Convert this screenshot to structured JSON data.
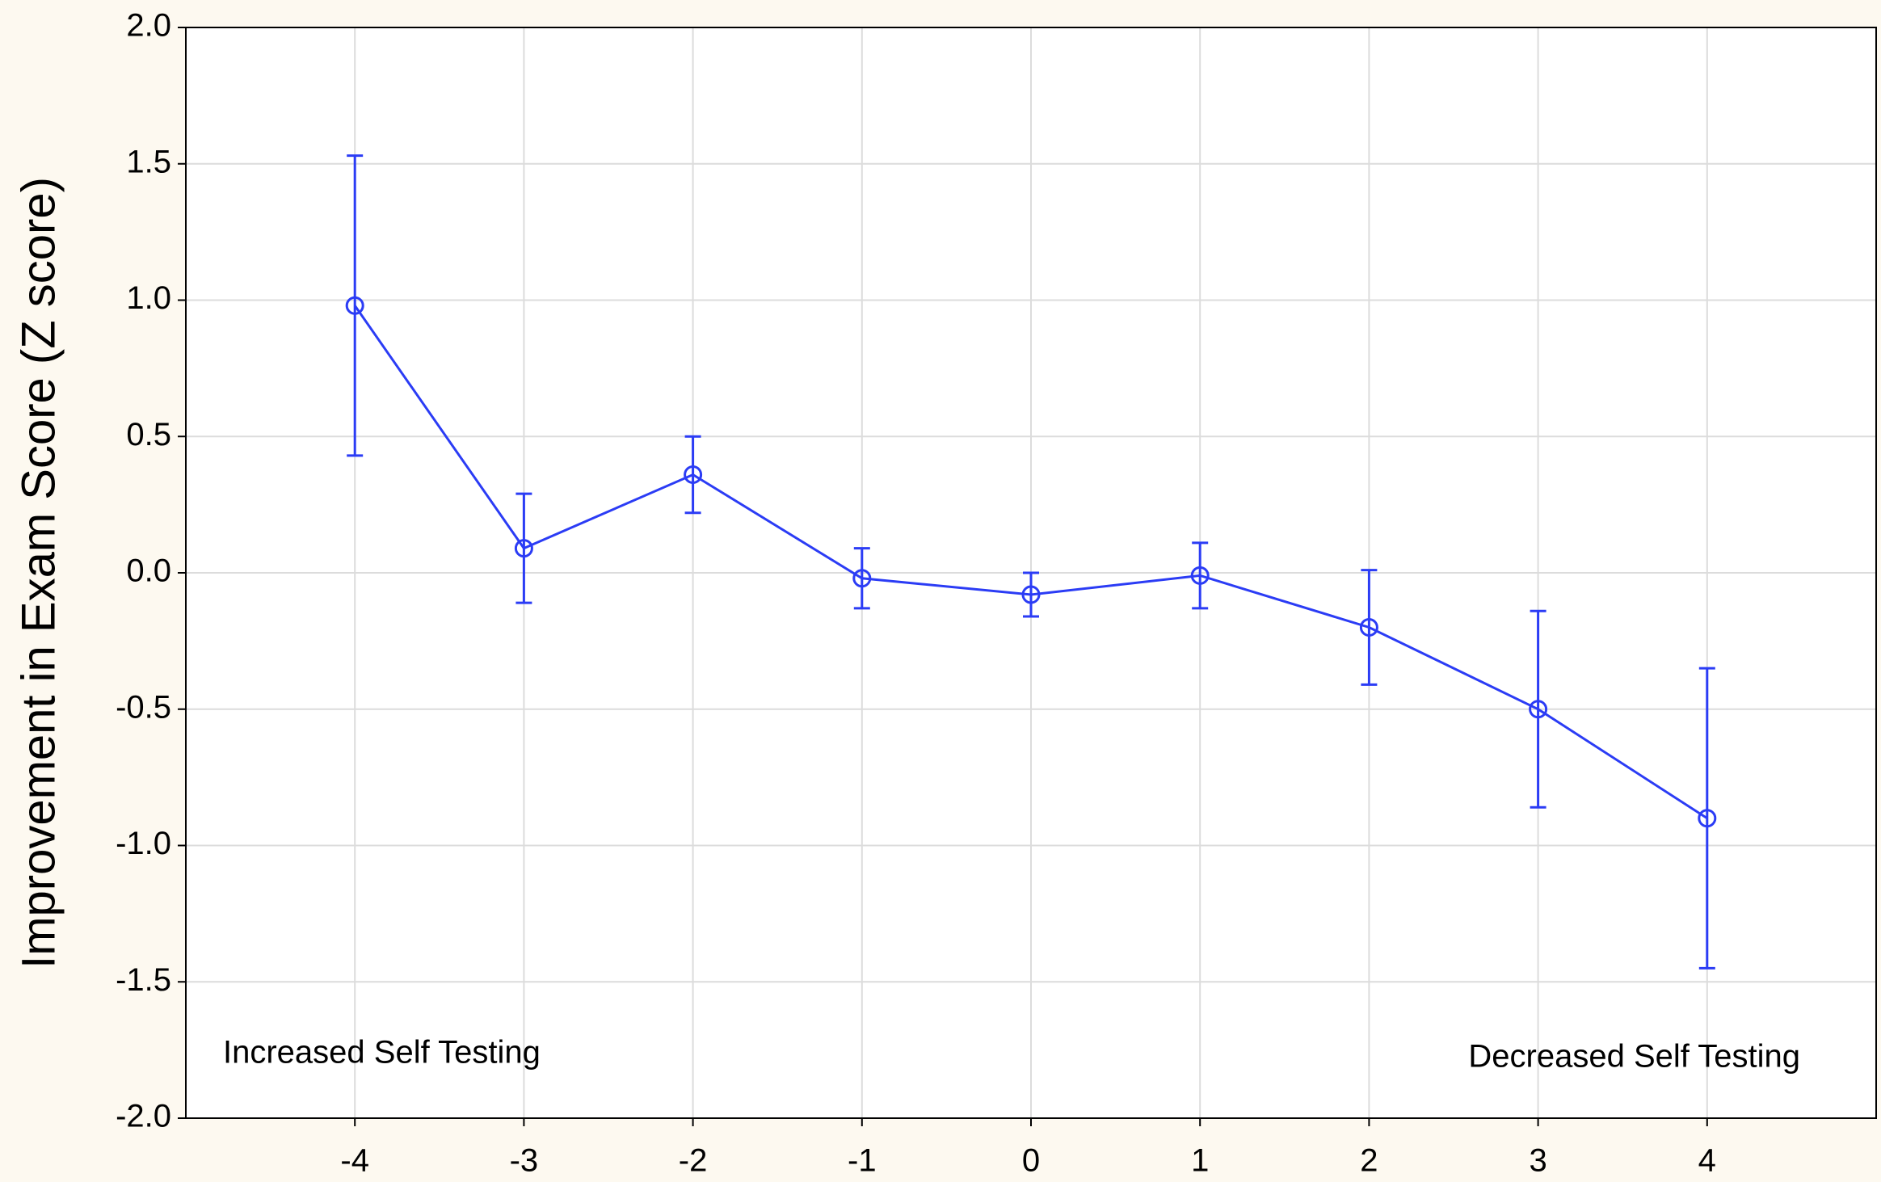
{
  "chart_data": {
    "type": "line",
    "y_label": "Improvement in Exam Score (Z score)",
    "annotations": [
      "Increased Self Testing",
      "Decreased Self Testing"
    ],
    "x": [
      -4,
      -3,
      -2,
      -1,
      0,
      1,
      2,
      3,
      4
    ],
    "values": [
      0.98,
      0.09,
      0.36,
      -0.02,
      -0.08,
      -0.01,
      -0.2,
      -0.5,
      -0.9
    ],
    "errors": [
      0.55,
      0.2,
      0.14,
      0.11,
      0.08,
      0.12,
      0.21,
      0.36,
      0.55
    ],
    "color": "#2b3cf5",
    "xlim": [
      -5,
      5
    ],
    "xticks": [
      -4,
      -3,
      -2,
      -1,
      0,
      1,
      2,
      3,
      4
    ],
    "ylim": [
      -2,
      2
    ],
    "yticks": [
      {
        "value": -2,
        "label": "-2.0"
      },
      {
        "value": -1.5,
        "label": "-1.5"
      },
      {
        "value": -1,
        "label": "-1.0"
      },
      {
        "value": -0.5,
        "label": "-0.5"
      },
      {
        "value": 0,
        "label": "0.0"
      },
      {
        "value": 0.5,
        "label": "0.5"
      },
      {
        "value": 1,
        "label": "1.0"
      },
      {
        "value": 1.5,
        "label": "1.5"
      },
      {
        "value": 2,
        "label": "2.0"
      }
    ],
    "grid": true
  }
}
